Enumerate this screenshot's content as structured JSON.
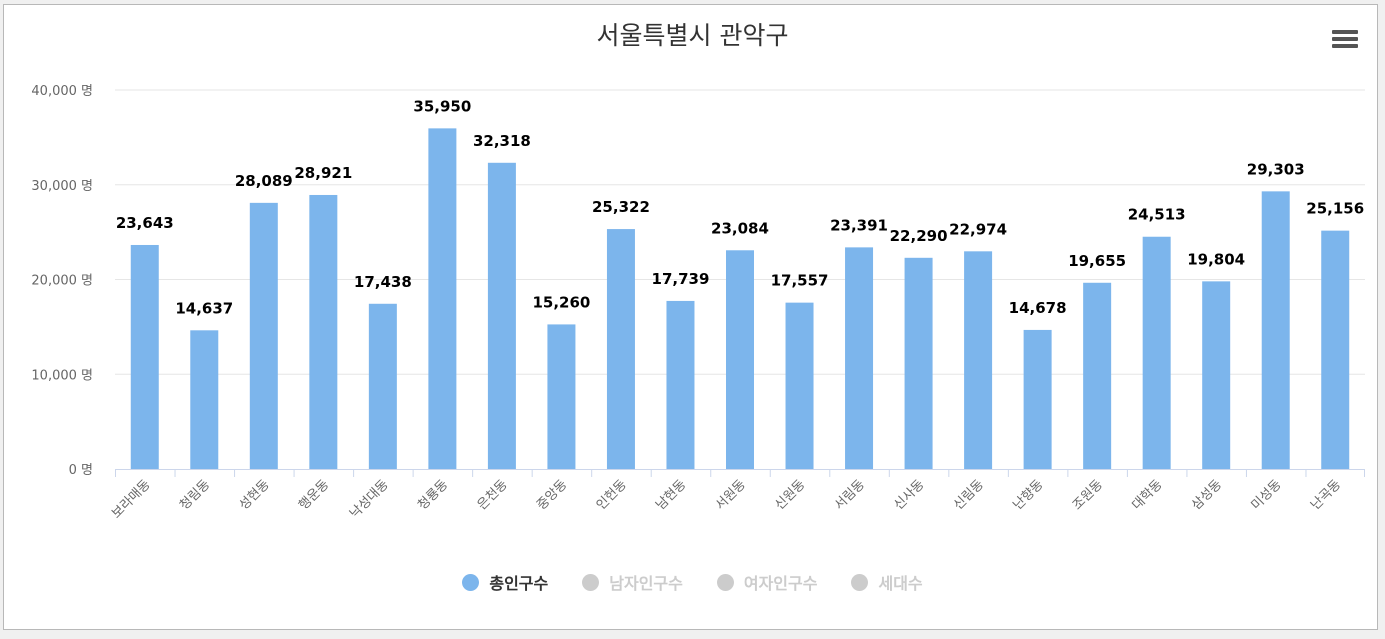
{
  "chart_data": {
    "type": "bar",
    "title": "서울특별시 관악구",
    "categories": [
      "보라매동",
      "청림동",
      "성현동",
      "행운동",
      "낙성대동",
      "청룡동",
      "은천동",
      "중앙동",
      "인헌동",
      "남현동",
      "서원동",
      "신원동",
      "서림동",
      "신사동",
      "신림동",
      "난향동",
      "조원동",
      "대학동",
      "삼성동",
      "미성동",
      "난곡동"
    ],
    "series": [
      {
        "name": "총인구수",
        "values": [
          23643,
          14637,
          28089,
          28921,
          17438,
          35950,
          32318,
          15260,
          25322,
          17739,
          23084,
          17557,
          23391,
          22290,
          22974,
          14678,
          19655,
          24513,
          19804,
          29303,
          25156
        ]
      }
    ],
    "data_labels": [
      "23,643",
      "14,637",
      "28,089",
      "28,921",
      "17,438",
      "35,950",
      "32,318",
      "15,260",
      "25,322",
      "17,739",
      "23,084",
      "17,557",
      "23,391",
      "22,290",
      "22,974",
      "14,678",
      "19,655",
      "24,513",
      "19,804",
      "29,303",
      "25,156"
    ],
    "y_ticks": [
      0,
      10000,
      20000,
      30000,
      40000
    ],
    "y_tick_labels": [
      "0 명",
      "10,000 명",
      "20,000 명",
      "30,000 명",
      "40,000 명"
    ],
    "ylim": [
      0,
      40000
    ],
    "grid": true,
    "legend_position": "bottom",
    "legend": [
      {
        "label": "총인구수",
        "active": true,
        "color": "#7cb5ec"
      },
      {
        "label": "남자인구수",
        "active": false,
        "color": "#cccccc"
      },
      {
        "label": "여자인구수",
        "active": false,
        "color": "#cccccc"
      },
      {
        "label": "세대수",
        "active": false,
        "color": "#cccccc"
      }
    ],
    "bar_color": "#7cb5ec"
  },
  "toolbar": {
    "menu_icon": "hamburger-menu-icon"
  }
}
